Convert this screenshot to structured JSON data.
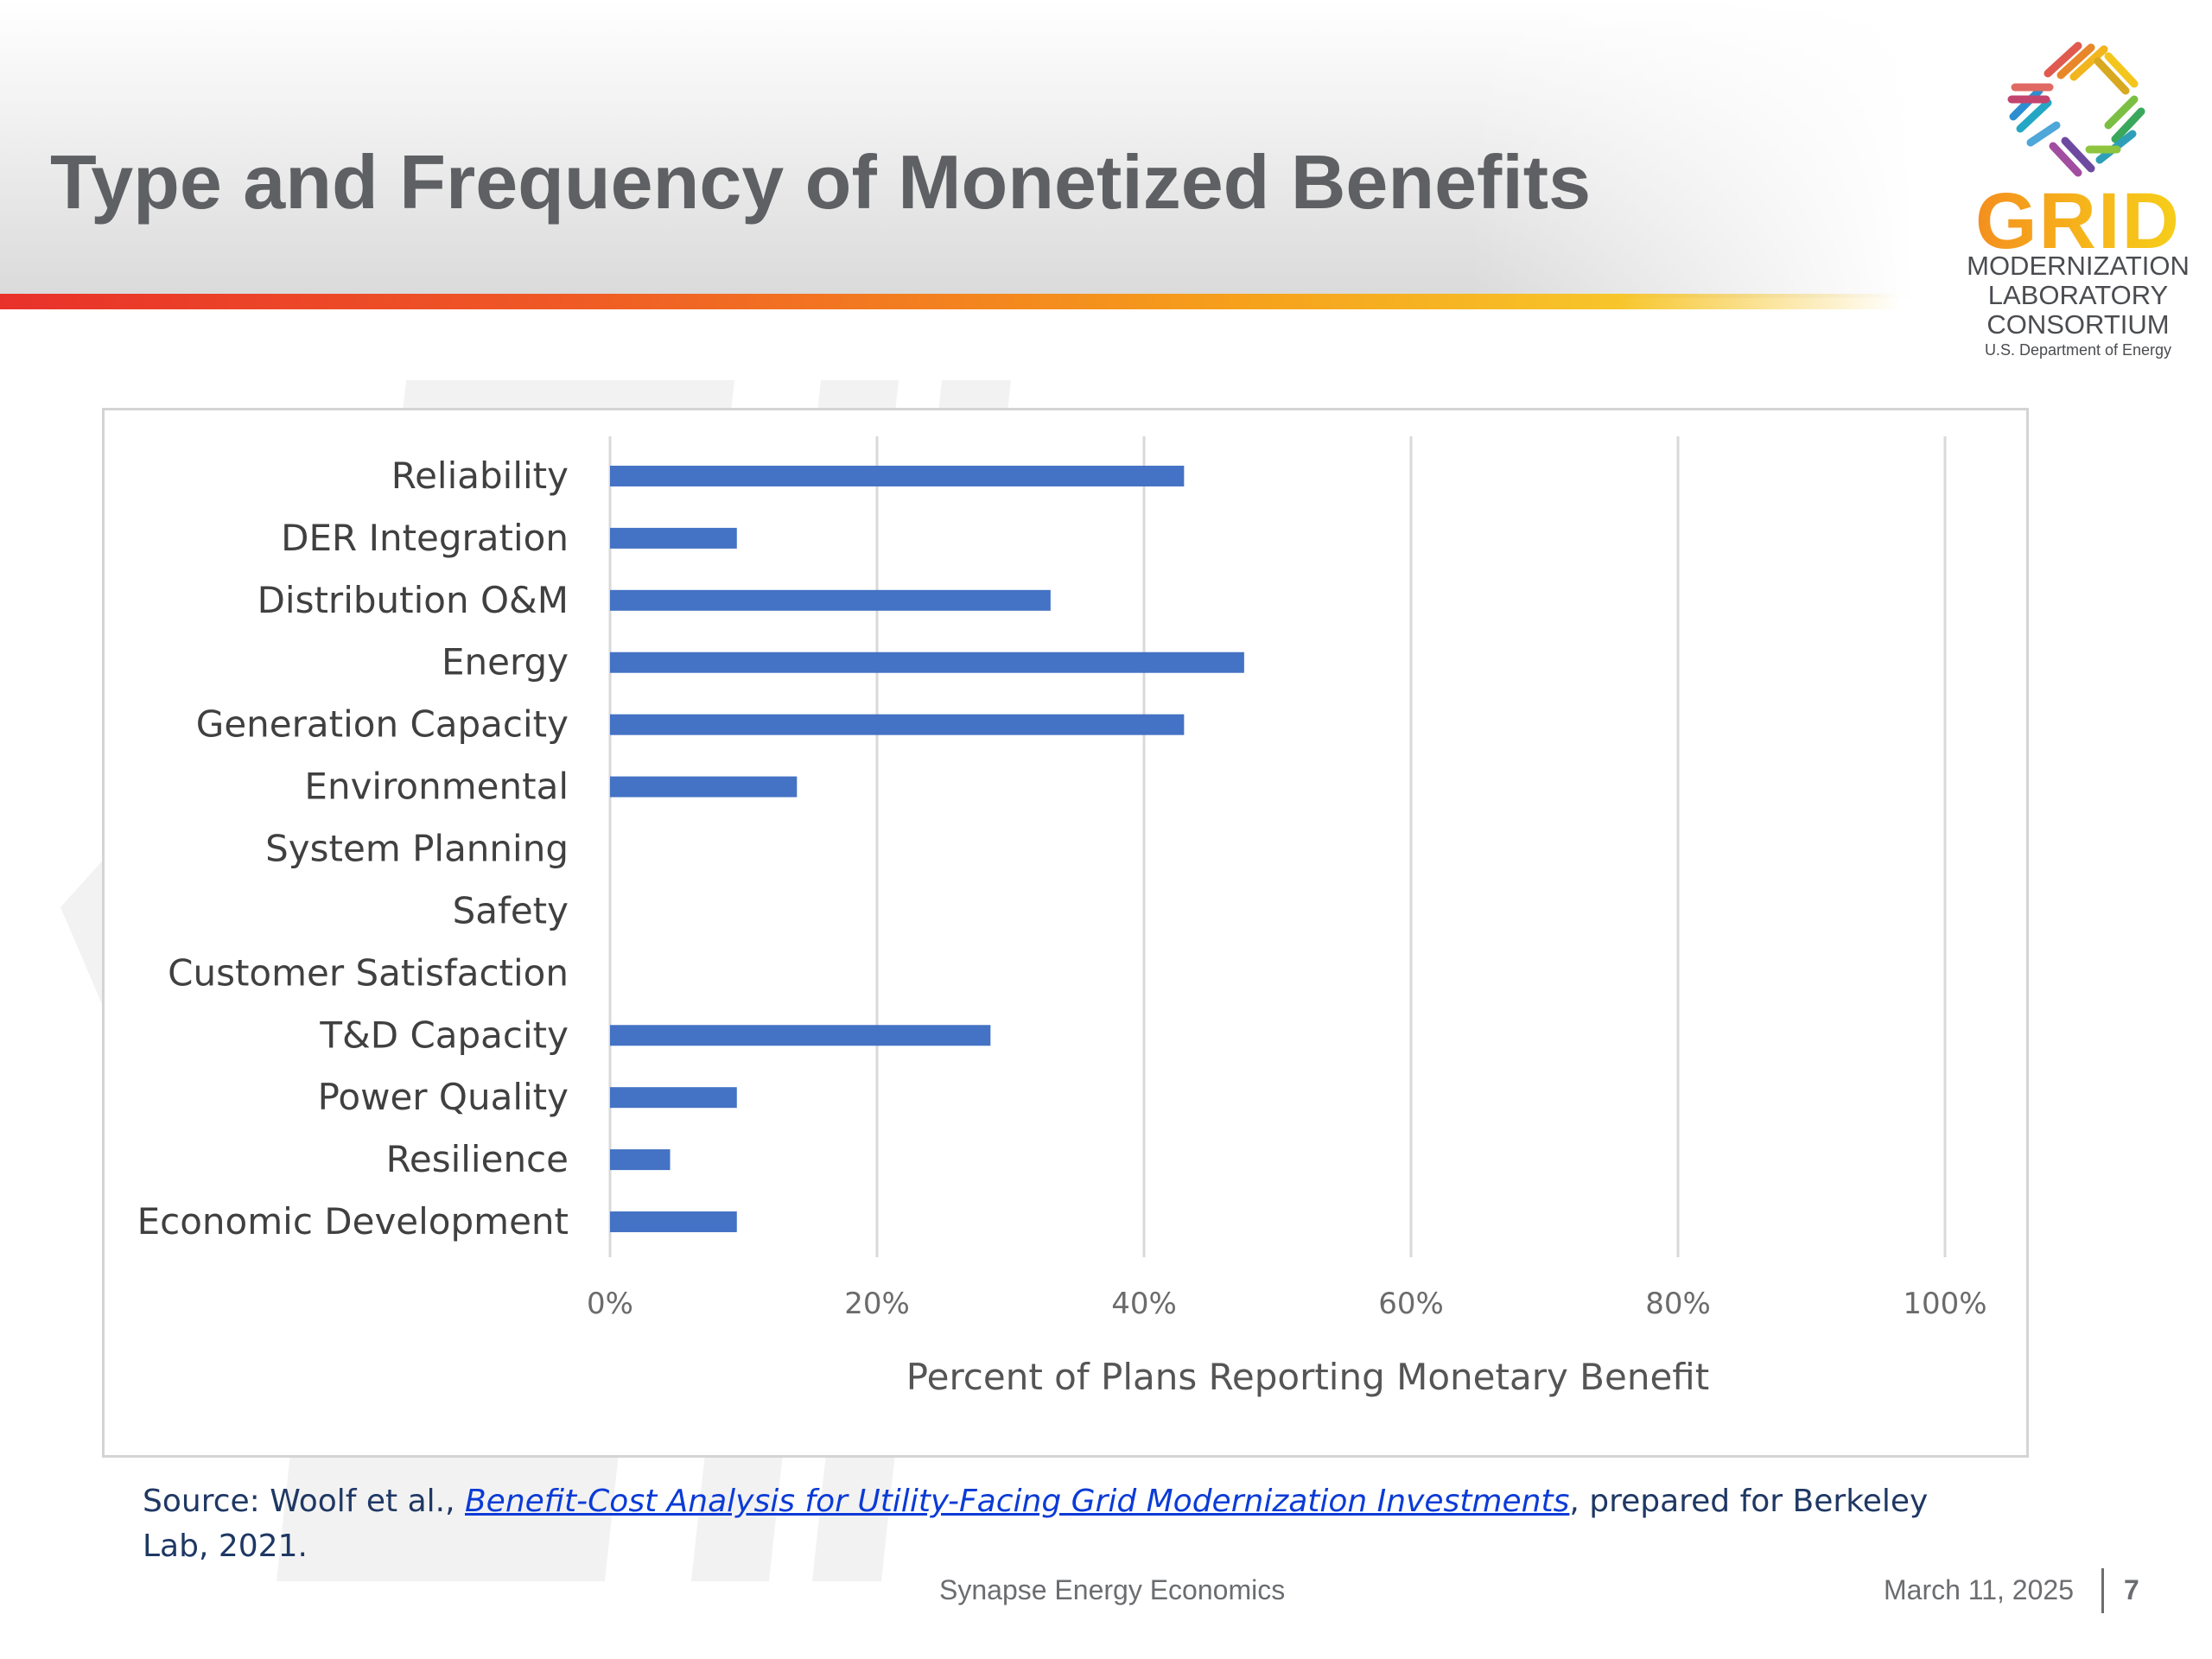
{
  "slide": {
    "title": "Type and Frequency of Monetized Benefits",
    "footer_center": "Synapse Energy Economics",
    "footer_date": "March 11, 2025",
    "page_number": "7"
  },
  "logo": {
    "wordmark": "GRID",
    "line1": "MODERNIZATION",
    "line2": "LABORATORY",
    "line3": "CONSORTIUM",
    "line4": "U.S. Department of Energy"
  },
  "source": {
    "prefix": "Source: Woolf et al., ",
    "link_text": "Benefit-Cost Analysis for Utility-Facing Grid Modernization Investments",
    "suffix": ", prepared for Berkeley Lab, 2021."
  },
  "colors": {
    "bar": "#4472c4",
    "title": "#5e6063",
    "accent_start": "#e8312a",
    "accent_end": "#f7c52a"
  },
  "chart_data": {
    "type": "bar",
    "orientation": "horizontal",
    "categories": [
      "Reliability",
      "DER Integration",
      "Distribution O&M",
      "Energy",
      "Generation Capacity",
      "Environmental",
      "System Planning",
      "Safety",
      "Customer Satisfaction",
      "T&D Capacity",
      "Power Quality",
      "Resilience",
      "Economic Development"
    ],
    "values": [
      43,
      9.5,
      33,
      47.5,
      43,
      14,
      0,
      0,
      0,
      28.5,
      9.5,
      4.5,
      9.5
    ],
    "xlabel": "Percent of Plans Reporting Monetary Benefit",
    "xlim": [
      0,
      100
    ],
    "xticks": [
      0,
      20,
      40,
      60,
      80,
      100
    ],
    "tick_labels": [
      "0%",
      "20%",
      "40%",
      "60%",
      "80%",
      "100%"
    ],
    "grid": "vertical",
    "legend": "none"
  }
}
